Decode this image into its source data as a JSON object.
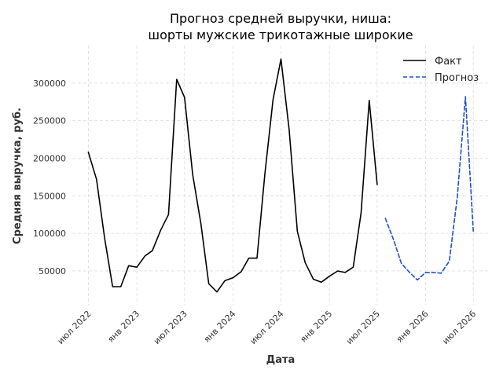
{
  "chart_data": {
    "type": "line",
    "title": [
      "Прогноз средней выручки, ниша:",
      "шорты мужские трикотажные широкие"
    ],
    "xlabel": "Дата",
    "ylabel": "Средняя выручка, руб.",
    "xlim": [
      "2022-05-01",
      "2026-09-01"
    ],
    "ylim": [
      5000,
      350000
    ],
    "x_ticks": [
      {
        "date": "2022-07-01",
        "label": "июл 2022"
      },
      {
        "date": "2023-01-01",
        "label": "янв 2023"
      },
      {
        "date": "2023-07-01",
        "label": "июл 2023"
      },
      {
        "date": "2024-01-01",
        "label": "янв 2024"
      },
      {
        "date": "2024-07-01",
        "label": "июл 2024"
      },
      {
        "date": "2025-01-01",
        "label": "янв 2025"
      },
      {
        "date": "2025-07-01",
        "label": "июл 2025"
      },
      {
        "date": "2026-01-01",
        "label": "янв 2026"
      },
      {
        "date": "2026-07-01",
        "label": "июл 2026"
      }
    ],
    "y_ticks": [
      50000,
      100000,
      150000,
      200000,
      250000,
      300000
    ],
    "grid": true,
    "legend": "top-right",
    "series": [
      {
        "name": "Факт",
        "color": "#000000",
        "style": "solid",
        "x": [
          "2022-07",
          "2022-08",
          "2022-09",
          "2022-10",
          "2022-11",
          "2022-12",
          "2023-01",
          "2023-02",
          "2023-03",
          "2023-04",
          "2023-05",
          "2023-06",
          "2023-07",
          "2023-08",
          "2023-09",
          "2023-10",
          "2023-11",
          "2023-12",
          "2024-01",
          "2024-02",
          "2024-03",
          "2024-04",
          "2024-05",
          "2024-06",
          "2024-07",
          "2024-08",
          "2024-09",
          "2024-10",
          "2024-11",
          "2024-12",
          "2025-01",
          "2025-02",
          "2025-03",
          "2025-04",
          "2025-05",
          "2025-06",
          "2025-07"
        ],
        "values": [
          208000,
          172000,
          93000,
          29000,
          29000,
          57000,
          55000,
          70000,
          77000,
          104000,
          125000,
          305000,
          281000,
          178000,
          113000,
          33000,
          22000,
          37000,
          41000,
          49000,
          67000,
          67000,
          180000,
          278000,
          332000,
          238000,
          103000,
          61000,
          39000,
          35000,
          43000,
          50000,
          48000,
          55000,
          127000,
          277000,
          165000
        ]
      },
      {
        "name": "Прогноз",
        "color": "#1f50d0",
        "style": "dashed",
        "x": [
          "2025-08",
          "2025-09",
          "2025-10",
          "2025-11",
          "2025-12",
          "2026-01",
          "2026-02",
          "2026-03",
          "2026-04",
          "2026-05",
          "2026-06",
          "2026-07"
        ],
        "values": [
          120000,
          92000,
          60000,
          48000,
          38000,
          48000,
          48000,
          47000,
          63000,
          148000,
          282000,
          103000
        ]
      }
    ]
  }
}
